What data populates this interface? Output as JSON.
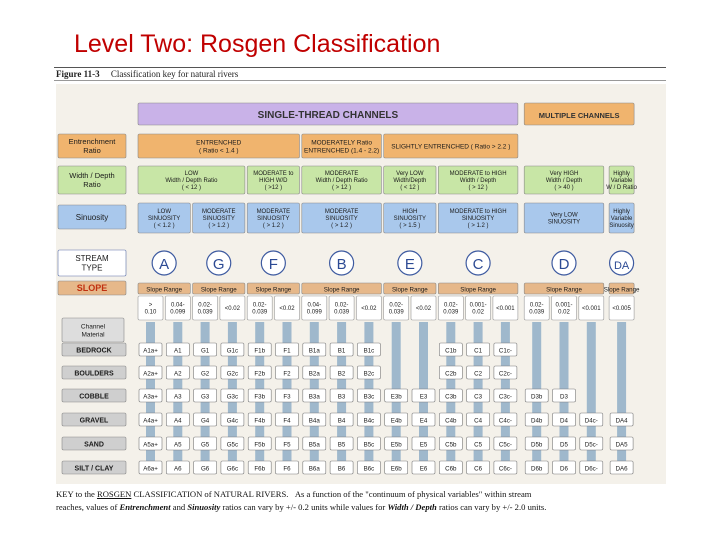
{
  "slide": {
    "title": "Level Two: Rosgen Classification"
  },
  "figure": {
    "number": "Figure 11-3",
    "caption": "Classification key for natural rivers"
  },
  "headers": {
    "single_thread": "SINGLE-THREAD  CHANNELS",
    "multiple": "MULTIPLE CHANNELS"
  },
  "row_labels": {
    "entrenchment": [
      "Entrenchment",
      "Ratio"
    ],
    "width_depth": [
      "Width / Depth",
      "Ratio"
    ],
    "sinuosity": "Sinuosity",
    "stream_type": [
      "STREAM",
      "TYPE"
    ],
    "slope": "SLOPE",
    "channel_material": [
      "Channel",
      "Material"
    ]
  },
  "entrenchment_groups": [
    {
      "lines": [
        "ENTRENCHED",
        "( Ratio < 1.4 )"
      ]
    },
    {
      "lines": [
        "MODERATELY  Ratio",
        "ENTRENCHED (1.4 - 2.2)"
      ]
    },
    {
      "lines": [
        "SLIGHTLY  ENTRENCHED ( Ratio > 2.2 )"
      ]
    },
    {
      "lines": [
        ""
      ]
    }
  ],
  "width_depth_boxes": [
    {
      "lines": [
        "LOW",
        "Width / Depth Ratio",
        "( < 12 )"
      ]
    },
    {
      "lines": [
        "MODERATE to",
        "HIGH  W/D",
        "( >12 )"
      ]
    },
    {
      "lines": [
        "MODERATE",
        "Width / Depth Ratio",
        "( > 12 )"
      ]
    },
    {
      "lines": [
        "Very LOW",
        "Width/Depth",
        "( < 12 )"
      ]
    },
    {
      "lines": [
        "MODERATE to HIGH",
        "Width / Depth",
        "( > 12 )"
      ]
    },
    {
      "lines": [
        "Very HIGH",
        "Width / Depth",
        "( > 40 )"
      ]
    },
    {
      "lines": [
        "Highly",
        "Variable",
        "W / D Ratio"
      ]
    }
  ],
  "sinuosity_boxes": [
    {
      "lines": [
        "LOW",
        "SINUOSITY",
        "( < 1.2 )"
      ]
    },
    {
      "lines": [
        "MODERATE",
        "SINUOSITY",
        "( > 1.2 )"
      ]
    },
    {
      "lines": [
        "MODERATE",
        "SINUOSITY",
        "( > 1.2 )"
      ]
    },
    {
      "lines": [
        "MODERATE",
        "SINUOSITY",
        "( > 1.2 )"
      ]
    },
    {
      "lines": [
        "HIGH",
        "SINUOSITY",
        "( > 1.5 )"
      ]
    },
    {
      "lines": [
        "MODERATE to HIGH",
        "SINUOSITY",
        "( > 1.2 )"
      ]
    },
    {
      "lines": [
        "Very LOW",
        "SINUOSITY"
      ]
    },
    {
      "lines": [
        "Highly",
        "Variable",
        "Sinuosity"
      ]
    }
  ],
  "stream_types": [
    "A",
    "G",
    "F",
    "B",
    "E",
    "C",
    "D",
    "DA"
  ],
  "slope_range_label": "Slope Range",
  "slopes": [
    [
      ">",
      "0.10"
    ],
    [
      "0.04-",
      "0.099"
    ],
    [
      "0.02-",
      "0.039"
    ],
    [
      "<0.02"
    ],
    [
      "0.02-",
      "0.039"
    ],
    [
      "<0.02"
    ],
    [
      "0.04-",
      "0.099"
    ],
    [
      "0.02-",
      "0.039"
    ],
    [
      "<0.02"
    ],
    [
      "0.02-",
      "0.039"
    ],
    [
      "<0.02"
    ],
    [
      "0.02-",
      "0.039"
    ],
    [
      "0.001-",
      "0.02"
    ],
    [
      "<0.001"
    ],
    [
      "0.02-",
      "0.039"
    ],
    [
      "0.001-",
      "0.02"
    ],
    [
      "<0.001"
    ],
    [
      "<0.005"
    ]
  ],
  "materials": [
    "BEDROCK",
    "BOULDERS",
    "COBBLE",
    "GRAVEL",
    "SAND",
    "SILT / CLAY"
  ],
  "cells": [
    [
      "A1a+",
      "A1",
      "G1",
      "G1c",
      "F1b",
      "F1",
      "B1a",
      "B1",
      "B1c",
      "",
      "",
      "C1b",
      "C1",
      "C1c-",
      "",
      "",
      "",
      ""
    ],
    [
      "A2a+",
      "A2",
      "G2",
      "G2c",
      "F2b",
      "F2",
      "B2a",
      "B2",
      "B2c",
      "",
      "",
      "C2b",
      "C2",
      "C2c-",
      "",
      "",
      "",
      ""
    ],
    [
      "A3a+",
      "A3",
      "G3",
      "G3c",
      "F3b",
      "F3",
      "B3a",
      "B3",
      "B3c",
      "E3b",
      "E3",
      "C3b",
      "C3",
      "C3c-",
      "D3b",
      "D3",
      "",
      ""
    ],
    [
      "A4a+",
      "A4",
      "G4",
      "G4c",
      "F4b",
      "F4",
      "B4a",
      "B4",
      "B4c",
      "E4b",
      "E4",
      "C4b",
      "C4",
      "C4c-",
      "D4b",
      "D4",
      "D4c-",
      "DA4"
    ],
    [
      "A5a+",
      "A5",
      "G5",
      "G5c",
      "F5b",
      "F5",
      "B5a",
      "B5",
      "B5c",
      "E5b",
      "E5",
      "C5b",
      "C5",
      "C5c-",
      "D5b",
      "D5",
      "D5c-",
      "DA5"
    ],
    [
      "A6a+",
      "A6",
      "G6",
      "G6c",
      "F6b",
      "F6",
      "B6a",
      "B6",
      "B6c",
      "E6b",
      "E6",
      "C6b",
      "C6",
      "C6c-",
      "D6b",
      "D6",
      "D6c-",
      "DA6"
    ]
  ],
  "footer": {
    "prefix": "KEY to the",
    "rosgen": "ROSGEN",
    "title_rest": "CLASSIFICATION of NATURAL RIVERS.",
    "line1_rest": "As a function of the \"continuum of physical variables\" within stream",
    "line2a": "reaches, values of",
    "entrenchment": "Entrenchment",
    "and": "and",
    "sinuosity": "Sinuosity",
    "line2b": "ratios can vary by +/- 0.2 units  while values for",
    "wd": "Width / Depth",
    "line2c": "ratios can vary by +/- 2.0 units."
  },
  "colors": {
    "title": "#c00000",
    "purple": "#c9b2e8",
    "orange": "#f0b46e",
    "green": "#c8e6a6",
    "blue": "#a9c8ec",
    "brown": "#e6b88a",
    "material_gray": "#cfcfcf"
  }
}
